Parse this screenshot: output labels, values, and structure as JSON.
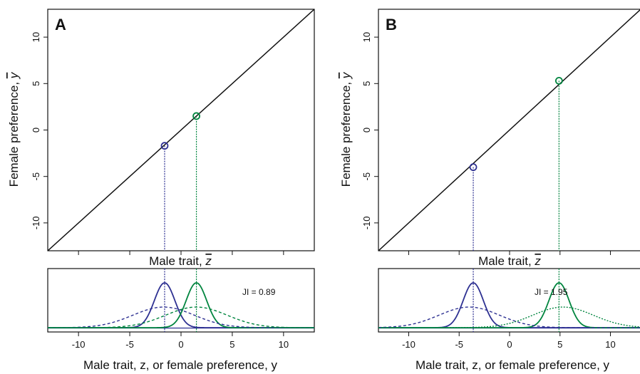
{
  "chart_data": [
    {
      "panel_label": "A",
      "type": "line",
      "xlabel_prefix": "Male trait, ",
      "xlabel_var": "z",
      "ylabel_prefix": "Female preference, ",
      "ylabel_var": "y",
      "xlim": [
        -13,
        13
      ],
      "ylim": [
        -13,
        13
      ],
      "yticks": [
        -10,
        -5,
        0,
        5,
        10
      ],
      "ytick_labels": [
        "-10",
        "-5",
        "0",
        "5",
        "10"
      ],
      "diagonal_line": {
        "slope": 1,
        "intercept": 0,
        "color": "#111111"
      },
      "equilibria": [
        {
          "x": -1.6,
          "y": -1.7,
          "color": "#2e3192"
        },
        {
          "x": 1.5,
          "y": 1.5,
          "color": "#00853f"
        }
      ]
    },
    {
      "panel_label": "B",
      "type": "line",
      "xlabel_prefix": "Male trait, ",
      "xlabel_var": "z",
      "ylabel_prefix": "Female preference, ",
      "ylabel_var": "y",
      "xlim": [
        -13,
        13
      ],
      "ylim": [
        -13,
        13
      ],
      "yticks": [
        -10,
        -5,
        0,
        5,
        10
      ],
      "ytick_labels": [
        "-10",
        "-5",
        "0",
        "5",
        "10"
      ],
      "diagonal_line": {
        "slope": 1,
        "intercept": 0,
        "color": "#111111"
      },
      "equilibria": [
        {
          "x": -3.6,
          "y": -4.0,
          "color": "#2e3192"
        },
        {
          "x": 4.9,
          "y": 5.3,
          "color": "#00853f"
        }
      ]
    },
    {
      "type": "line",
      "annotation": "JI = 0.89",
      "xlabel": "Male trait, z, or female preference, y",
      "xlim": [
        -13,
        13
      ],
      "xticks": [
        -10,
        -5,
        0,
        5,
        10
      ],
      "xtick_labels": [
        "-10",
        "-5",
        "0",
        "5",
        "10"
      ],
      "series": [
        {
          "mean": -1.6,
          "sd": 1.0,
          "peak": 1.0,
          "style": "solid",
          "color": "#2e3192"
        },
        {
          "mean": 1.5,
          "sd": 1.0,
          "peak": 1.0,
          "style": "solid",
          "color": "#00853f"
        },
        {
          "mean": -1.7,
          "sd": 3.0,
          "peak": 0.46,
          "style": "dashed",
          "color": "#2e3192"
        },
        {
          "mean": 1.5,
          "sd": 3.0,
          "peak": 0.46,
          "style": "dashed",
          "color": "#00853f"
        }
      ]
    },
    {
      "type": "line",
      "annotation": "JI = 1.95",
      "xlabel": "Male trait, z, or female preference, y",
      "xlim": [
        -13,
        13
      ],
      "xticks": [
        -10,
        -5,
        0,
        5,
        10
      ],
      "xtick_labels": [
        "-10",
        "-5",
        "0",
        "5",
        "10"
      ],
      "series": [
        {
          "mean": -3.6,
          "sd": 1.0,
          "peak": 1.0,
          "style": "solid",
          "color": "#2e3192"
        },
        {
          "mean": 4.9,
          "sd": 1.0,
          "peak": 1.0,
          "style": "solid",
          "color": "#00853f"
        },
        {
          "mean": -4.0,
          "sd": 3.0,
          "peak": 0.46,
          "style": "dashed",
          "color": "#2e3192"
        },
        {
          "mean": 5.3,
          "sd": 3.0,
          "peak": 0.46,
          "style": "dotted",
          "color": "#00853f"
        }
      ]
    }
  ]
}
